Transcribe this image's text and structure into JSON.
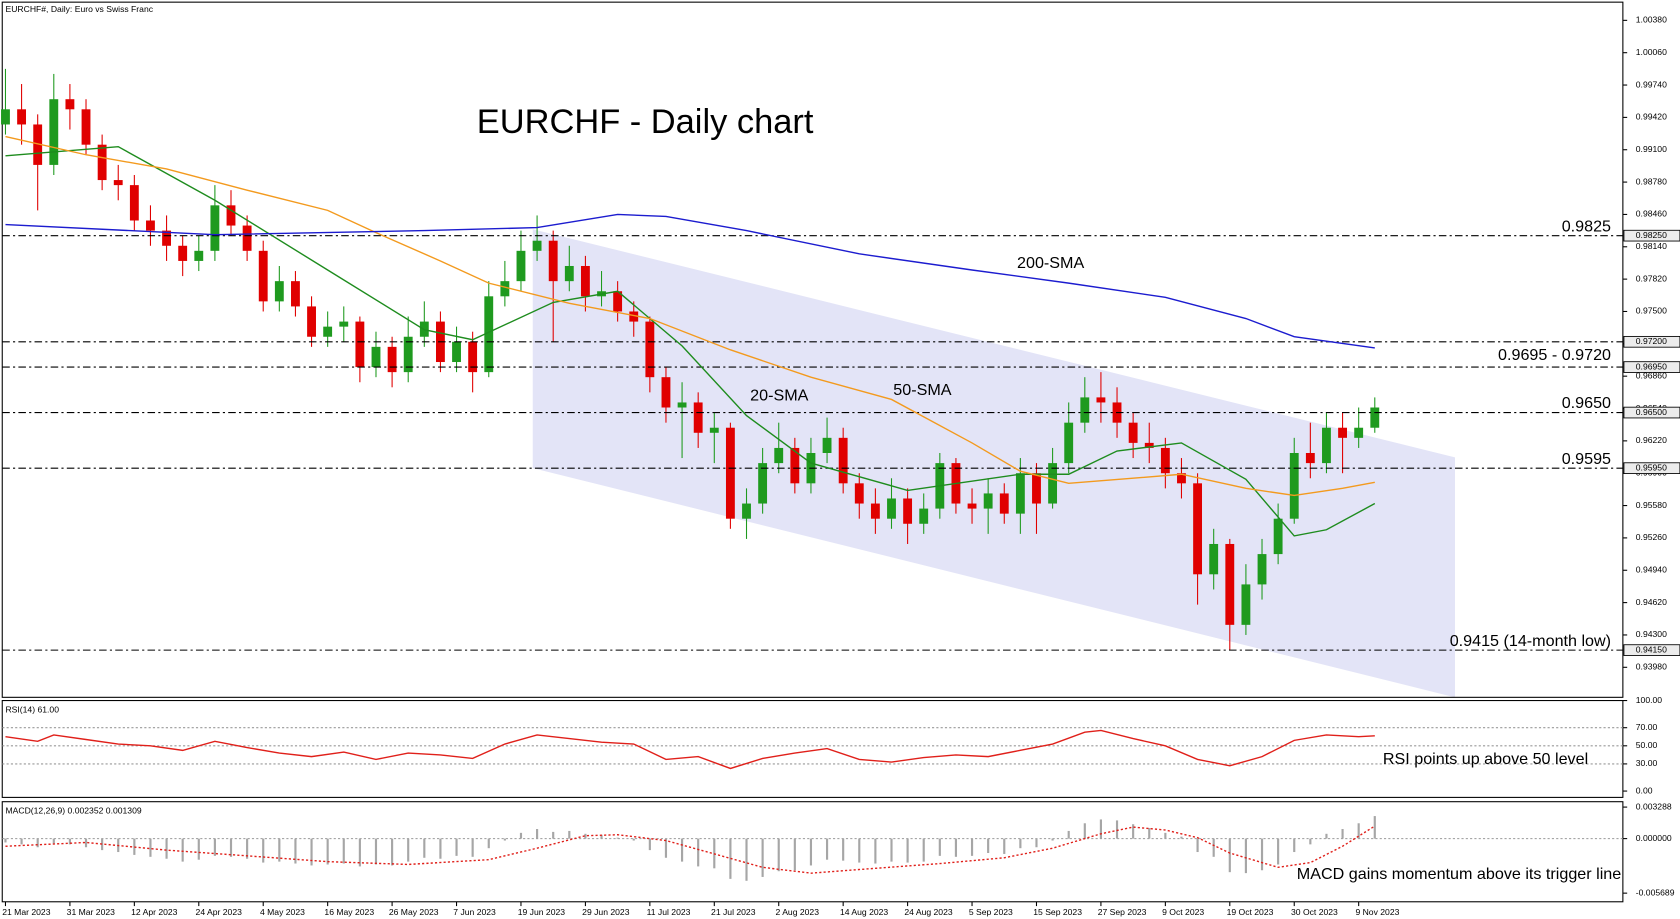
{
  "chart_data": [
    {
      "type": "candlestick",
      "header": "EURCHF#, Daily:  Euro vs Swiss Franc",
      "title": "EURCHF - Daily chart",
      "up_color": "#1f9a1f",
      "down_color": "#e00000",
      "xlim": [
        -0.2,
        100.4
      ],
      "xticks": [
        {
          "value": 0,
          "label": "21 Mar 2023"
        },
        {
          "value": 4,
          "label": "31 Mar 2023"
        },
        {
          "value": 8,
          "label": "12 Apr 2023"
        },
        {
          "value": 12,
          "label": "24 Apr 2023"
        },
        {
          "value": 16,
          "label": "4 May 2023"
        },
        {
          "value": 20,
          "label": "16 May 2023"
        },
        {
          "value": 24,
          "label": "26 May 2023"
        },
        {
          "value": 28,
          "label": "7 Jun 2023"
        },
        {
          "value": 32,
          "label": "19 Jun 2023"
        },
        {
          "value": 36,
          "label": "29 Jun 2023"
        },
        {
          "value": 40,
          "label": "11 Jul 2023"
        },
        {
          "value": 44,
          "label": "21 Jul 2023"
        },
        {
          "value": 48,
          "label": "2 Aug 2023"
        },
        {
          "value": 52,
          "label": "14 Aug 2023"
        },
        {
          "value": 56,
          "label": "24 Aug 2023"
        },
        {
          "value": 60,
          "label": "5 Sep 2023"
        },
        {
          "value": 64,
          "label": "15 Sep 2023"
        },
        {
          "value": 68,
          "label": "27 Sep 2023"
        },
        {
          "value": 72,
          "label": "9 Oct 2023"
        },
        {
          "value": 76,
          "label": "19 Oct 2023"
        },
        {
          "value": 80,
          "label": "30 Oct 2023"
        },
        {
          "value": 84,
          "label": "9 Nov 2023"
        }
      ],
      "ylim": [
        0.93683,
        1.0056
      ],
      "yticks": [
        {
          "value": 1.0038,
          "label": "1.00380"
        },
        {
          "value": 1.0006,
          "label": "1.00060"
        },
        {
          "value": 0.9974,
          "label": "0.99740"
        },
        {
          "value": 0.9942,
          "label": "0.99420"
        },
        {
          "value": 0.991,
          "label": "0.99100"
        },
        {
          "value": 0.9878,
          "label": "0.98780"
        },
        {
          "value": 0.9846,
          "label": "0.98460"
        },
        {
          "value": 0.9814,
          "label": "0.98140"
        },
        {
          "value": 0.9782,
          "label": "0.97820"
        },
        {
          "value": 0.975,
          "label": "0.97500"
        },
        {
          "value": 0.9718,
          "label": "0.97180"
        },
        {
          "value": 0.9686,
          "label": "0.96860"
        },
        {
          "value": 0.9654,
          "label": "0.96540"
        },
        {
          "value": 0.9622,
          "label": "0.96220"
        },
        {
          "value": 0.959,
          "label": "0.95900"
        },
        {
          "value": 0.9558,
          "label": "0.95580"
        },
        {
          "value": 0.9526,
          "label": "0.95260"
        },
        {
          "value": 0.9494,
          "label": "0.94940"
        },
        {
          "value": 0.9462,
          "label": "0.94620"
        },
        {
          "value": 0.943,
          "label": "0.94300"
        },
        {
          "value": 0.9398,
          "label": "0.93980"
        }
      ],
      "candles": {
        "open": [
          0.9935,
          0.995,
          0.9935,
          0.9895,
          0.996,
          0.995,
          0.9915,
          0.988,
          0.9875,
          0.984,
          0.983,
          0.9815,
          0.98,
          0.981,
          0.9855,
          0.9835,
          0.981,
          0.976,
          0.978,
          0.9755,
          0.9725,
          0.9735,
          0.974,
          0.9695,
          0.9715,
          0.969,
          0.9725,
          0.974,
          0.97,
          0.972,
          0.969,
          0.9765,
          0.978,
          0.981,
          0.982,
          0.978,
          0.9795,
          0.9765,
          0.977,
          0.975,
          0.974,
          0.9685,
          0.9655,
          0.966,
          0.963,
          0.9635,
          0.9545,
          0.956,
          0.96,
          0.9615,
          0.958,
          0.961,
          0.9625,
          0.958,
          0.956,
          0.9545,
          0.9565,
          0.954,
          0.9555,
          0.96,
          0.956,
          0.9555,
          0.957,
          0.955,
          0.959,
          0.956,
          0.96,
          0.964,
          0.9665,
          0.966,
          0.964,
          0.962,
          0.9615,
          0.959,
          0.958,
          0.949,
          0.952,
          0.944,
          0.948,
          0.951,
          0.9545,
          0.961,
          0.96,
          0.9635,
          0.9625,
          0.9635
        ],
        "high": [
          0.999,
          0.9975,
          0.9945,
          0.9985,
          0.9975,
          0.996,
          0.9925,
          0.9895,
          0.9885,
          0.9855,
          0.9845,
          0.9825,
          0.9825,
          0.9875,
          0.987,
          0.9845,
          0.982,
          0.9795,
          0.979,
          0.9765,
          0.975,
          0.9755,
          0.9745,
          0.973,
          0.9725,
          0.9745,
          0.976,
          0.975,
          0.9735,
          0.973,
          0.978,
          0.98,
          0.983,
          0.9845,
          0.983,
          0.9815,
          0.9805,
          0.979,
          0.978,
          0.976,
          0.9745,
          0.9695,
          0.968,
          0.967,
          0.965,
          0.964,
          0.9575,
          0.9615,
          0.964,
          0.9625,
          0.9625,
          0.9645,
          0.9635,
          0.959,
          0.9575,
          0.9585,
          0.9575,
          0.957,
          0.961,
          0.9605,
          0.9575,
          0.9585,
          0.958,
          0.9605,
          0.96,
          0.9615,
          0.966,
          0.9685,
          0.969,
          0.9675,
          0.965,
          0.964,
          0.9625,
          0.9605,
          0.959,
          0.9535,
          0.9525,
          0.95,
          0.9525,
          0.956,
          0.9625,
          0.964,
          0.965,
          0.965,
          0.9655,
          0.9665
        ],
        "low": [
          0.9925,
          0.9915,
          0.985,
          0.9885,
          0.993,
          0.9905,
          0.987,
          0.986,
          0.983,
          0.9815,
          0.98,
          0.9785,
          0.979,
          0.98,
          0.9825,
          0.98,
          0.975,
          0.975,
          0.9745,
          0.9715,
          0.9715,
          0.972,
          0.968,
          0.9685,
          0.9675,
          0.968,
          0.9715,
          0.969,
          0.969,
          0.967,
          0.9685,
          0.9755,
          0.977,
          0.98,
          0.972,
          0.977,
          0.975,
          0.9755,
          0.974,
          0.9725,
          0.967,
          0.964,
          0.9605,
          0.9615,
          0.96,
          0.9535,
          0.9525,
          0.955,
          0.959,
          0.957,
          0.957,
          0.96,
          0.957,
          0.9545,
          0.953,
          0.9535,
          0.952,
          0.953,
          0.9545,
          0.955,
          0.954,
          0.953,
          0.954,
          0.953,
          0.953,
          0.9555,
          0.959,
          0.963,
          0.964,
          0.9625,
          0.9605,
          0.96,
          0.9575,
          0.9565,
          0.946,
          0.9475,
          0.9415,
          0.943,
          0.9465,
          0.95,
          0.954,
          0.9585,
          0.959,
          0.959,
          0.9615,
          0.963
        ],
        "close": [
          0.995,
          0.9935,
          0.9895,
          0.996,
          0.995,
          0.9915,
          0.988,
          0.9875,
          0.984,
          0.983,
          0.9815,
          0.98,
          0.981,
          0.9855,
          0.9835,
          0.981,
          0.976,
          0.978,
          0.9755,
          0.9725,
          0.9735,
          0.974,
          0.9695,
          0.9715,
          0.969,
          0.9725,
          0.974,
          0.97,
          0.972,
          0.969,
          0.9765,
          0.978,
          0.981,
          0.982,
          0.978,
          0.9795,
          0.9765,
          0.977,
          0.975,
          0.974,
          0.9685,
          0.9655,
          0.966,
          0.963,
          0.9635,
          0.9545,
          0.956,
          0.96,
          0.9615,
          0.958,
          0.961,
          0.9625,
          0.958,
          0.956,
          0.9545,
          0.9565,
          0.954,
          0.9555,
          0.96,
          0.956,
          0.9555,
          0.957,
          0.955,
          0.959,
          0.956,
          0.96,
          0.964,
          0.9665,
          0.966,
          0.964,
          0.962,
          0.9615,
          0.959,
          0.958,
          0.949,
          0.952,
          0.944,
          0.948,
          0.951,
          0.9545,
          0.961,
          0.96,
          0.9635,
          0.9625,
          0.9635,
          0.9655
        ]
      },
      "series": [
        {
          "name": "20-SMA",
          "color": "#1e8c1e",
          "x": [
            0,
            7,
            13,
            20,
            26,
            29,
            34,
            38,
            42,
            46,
            50,
            56,
            63,
            66,
            69,
            73,
            77,
            80,
            82,
            85
          ],
          "values": [
            0.9904,
            0.9913,
            0.986,
            0.9791,
            0.9732,
            0.9722,
            0.9759,
            0.977,
            0.9716,
            0.9647,
            0.96,
            0.9573,
            0.9589,
            0.9589,
            0.9612,
            0.962,
            0.9584,
            0.9528,
            0.9534,
            0.956
          ]
        },
        {
          "name": "50-SMA",
          "color": "#f39a1e",
          "x": [
            0,
            5,
            10,
            15,
            20,
            23,
            27,
            30,
            35,
            40,
            45,
            50,
            55,
            60,
            63,
            66,
            70,
            73,
            77,
            80,
            83,
            85
          ],
          "values": [
            0.9923,
            0.9905,
            0.9891,
            0.987,
            0.985,
            0.9828,
            0.98,
            0.9778,
            0.9758,
            0.9743,
            0.9712,
            0.9685,
            0.9663,
            0.962,
            0.9592,
            0.958,
            0.9585,
            0.9589,
            0.9575,
            0.9568,
            0.9575,
            0.9581
          ]
        },
        {
          "name": "200-SMA",
          "color": "#1c1ccf",
          "x": [
            0,
            13,
            26,
            33,
            38,
            41,
            46,
            53,
            60,
            66,
            72,
            77,
            80,
            85
          ],
          "values": [
            0.9836,
            0.9826,
            0.983,
            0.9833,
            0.9846,
            0.9844,
            0.983,
            0.9807,
            0.9791,
            0.9778,
            0.9764,
            0.9743,
            0.9725,
            0.9714
          ]
        }
      ],
      "levels": [
        {
          "value": 0.9825,
          "label": "0.98250"
        },
        {
          "value": 0.972,
          "label": "0.97200"
        },
        {
          "value": 0.9695,
          "label": "0.96950"
        },
        {
          "value": 0.965,
          "label": "0.96500"
        },
        {
          "value": 0.9595,
          "label": "0.95950"
        },
        {
          "value": 0.9415,
          "label": "0.94150"
        }
      ],
      "notes": [
        {
          "text": "0.9825",
          "values": [
            0.9825
          ],
          "color": "#f05a1e"
        },
        {
          "text": "0.9695 - 0.9720",
          "values": [
            0.9695,
            0.972
          ],
          "color": "#f05a1e"
        },
        {
          "text": "0.9650",
          "values": [
            0.965
          ],
          "color": "#2a8a2a"
        },
        {
          "text": "0.9595",
          "values": [
            0.9595
          ],
          "color": "#2a8a2a"
        },
        {
          "text": "0.9415 (14-month low)",
          "values": [
            0.9415
          ],
          "color": "#2a8a2a"
        }
      ]
    },
    {
      "type": "line",
      "title": "RSI(14) 61.00",
      "annotation": "RSI points up above 50 level",
      "ylim": [
        -7,
        100
      ],
      "yticks": [
        {
          "value": 100,
          "label": "100.00"
        },
        {
          "value": 70,
          "label": "70.00"
        },
        {
          "value": 50,
          "label": "50.00"
        },
        {
          "value": 30,
          "label": "30.00"
        },
        {
          "value": 0,
          "label": "0.00"
        }
      ],
      "grid": true,
      "series": [
        {
          "color": "#e0201a",
          "x": [
            0,
            2,
            3,
            5,
            7,
            9,
            11,
            13,
            15,
            17,
            19,
            21,
            23,
            25,
            27,
            29,
            31,
            33,
            35,
            37,
            39,
            41,
            43,
            45,
            47,
            49,
            51,
            53,
            55,
            57,
            59,
            61,
            63,
            65,
            67,
            68,
            70,
            72,
            74,
            76,
            78,
            80,
            82,
            84,
            85
          ],
          "values": [
            60,
            55,
            62,
            57,
            52,
            50,
            45,
            55,
            48,
            42,
            38,
            43,
            35,
            42,
            40,
            36,
            52,
            62,
            58,
            54,
            52,
            35,
            38,
            25,
            36,
            42,
            47,
            35,
            32,
            37,
            40,
            38,
            45,
            52,
            65,
            67,
            58,
            50,
            35,
            28,
            38,
            56,
            62,
            60,
            61
          ]
        }
      ]
    },
    {
      "type": "macd",
      "title": "MACD(12,26,9) 0.002352 0.001309",
      "annotation": "MACD gains momentum above its trigger line",
      "ylim": [
        -0.00659,
        0.00385
      ],
      "yticks": [
        0.003288,
        {
          "value": 0,
          "label": "0.000000"
        },
        -0.005689
      ],
      "grid": true,
      "histogram": {
        "color": "#a6a6a6",
        "values": [
          -0.0004,
          -0.0006,
          -0.0009,
          -0.0005,
          -0.0006,
          -0.0009,
          -0.0012,
          -0.0014,
          -0.0017,
          -0.0019,
          -0.0021,
          -0.0024,
          -0.0022,
          -0.0018,
          -0.0019,
          -0.0021,
          -0.0025,
          -0.0024,
          -0.0026,
          -0.0028,
          -0.0027,
          -0.0026,
          -0.0029,
          -0.0027,
          -0.0028,
          -0.0024,
          -0.002,
          -0.0021,
          -0.0018,
          -0.0019,
          -0.001,
          -0.0002,
          0.0006,
          0.001,
          0.0007,
          0.0008,
          0.0005,
          0.0004,
          0.0001,
          -0.0002,
          -0.0012,
          -0.002,
          -0.0024,
          -0.0029,
          -0.0031,
          -0.0042,
          -0.0044,
          -0.004,
          -0.0034,
          -0.0033,
          -0.0028,
          -0.0022,
          -0.0023,
          -0.0025,
          -0.0026,
          -0.0024,
          -0.0025,
          -0.0024,
          -0.0018,
          -0.0019,
          -0.0018,
          -0.0015,
          -0.0016,
          -0.001,
          -0.0009,
          -0.0002,
          0.0008,
          0.0016,
          0.002,
          0.0019,
          0.0015,
          0.0011,
          0.0006,
          0.0002,
          -0.0014,
          -0.0019,
          -0.0035,
          -0.0036,
          -0.0033,
          -0.0027,
          -0.0014,
          -0.0006,
          0.0005,
          0.001,
          0.0016,
          0.002352
        ]
      },
      "series": [
        {
          "color": "#e0201a",
          "x": [
            0,
            5,
            10,
            15,
            20,
            25,
            30,
            33,
            36,
            38,
            41,
            44,
            47,
            50,
            54,
            58,
            62,
            65,
            68,
            70,
            72,
            74,
            76,
            79,
            81,
            83,
            85
          ],
          "values": [
            -0.0008,
            -0.0004,
            -0.0012,
            -0.0018,
            -0.0024,
            -0.0027,
            -0.0022,
            -0.001,
            0.0003,
            0.0004,
            -0.0002,
            -0.0016,
            -0.003,
            -0.0036,
            -0.0031,
            -0.0026,
            -0.002,
            -0.001,
            0.0005,
            0.0012,
            0.0009,
            0.0001,
            -0.0015,
            -0.003,
            -0.0025,
            -0.0008,
            0.001309
          ]
        }
      ]
    }
  ]
}
